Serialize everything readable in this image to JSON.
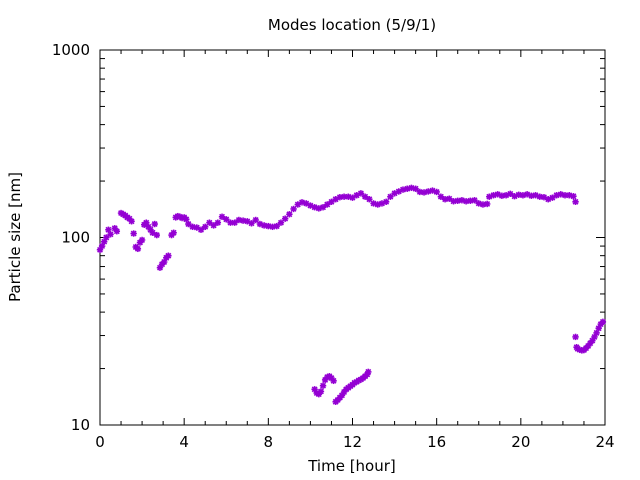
{
  "chart_data": {
    "type": "scatter",
    "title": "Modes location (5/9/1)",
    "xlabel": "Time [hour]",
    "ylabel": "Particle size [nm]",
    "xlim": [
      0,
      24
    ],
    "ylim": [
      10,
      1000
    ],
    "yscale": "log",
    "grid": false,
    "legend": "none",
    "x_ticks": [
      0,
      4,
      8,
      12,
      16,
      20,
      24
    ],
    "x_tick_labels": [
      "0",
      "4",
      "8",
      "12",
      "16",
      "20",
      "24"
    ],
    "y_ticks": [
      10,
      100,
      1000
    ],
    "y_tick_labels": [
      "10",
      "100",
      "1000"
    ],
    "marker_color": "#9400d3",
    "series": [
      {
        "values": [
          [
            0.0,
            86
          ],
          [
            0.1,
            90
          ],
          [
            0.2,
            95
          ],
          [
            0.3,
            100
          ],
          [
            0.4,
            110
          ],
          [
            0.5,
            104
          ],
          [
            0.7,
            112
          ],
          [
            0.8,
            108
          ],
          [
            1.0,
            135
          ],
          [
            1.1,
            133
          ],
          [
            1.2,
            131
          ],
          [
            1.3,
            128
          ],
          [
            1.4,
            126
          ],
          [
            1.5,
            122
          ],
          [
            1.6,
            105
          ],
          [
            1.7,
            89
          ],
          [
            1.8,
            87
          ],
          [
            1.9,
            94
          ],
          [
            2.0,
            97
          ],
          [
            2.1,
            117
          ],
          [
            2.2,
            120
          ],
          [
            2.3,
            114
          ],
          [
            2.4,
            110
          ],
          [
            2.5,
            106
          ],
          [
            2.6,
            118
          ],
          [
            2.7,
            103
          ],
          [
            2.85,
            69
          ],
          [
            2.95,
            72
          ],
          [
            3.05,
            74
          ],
          [
            3.15,
            78
          ],
          [
            3.25,
            80
          ],
          [
            3.4,
            103
          ],
          [
            3.5,
            106
          ],
          [
            3.6,
            128
          ],
          [
            3.7,
            130
          ],
          [
            3.8,
            129
          ],
          [
            3.9,
            127
          ],
          [
            4.0,
            128
          ],
          [
            4.1,
            125
          ],
          [
            4.2,
            118
          ],
          [
            4.4,
            114
          ],
          [
            4.6,
            113
          ],
          [
            4.8,
            110
          ],
          [
            5.0,
            114
          ],
          [
            5.2,
            120
          ],
          [
            5.4,
            116
          ],
          [
            5.6,
            120
          ],
          [
            5.8,
            129
          ],
          [
            6.0,
            125
          ],
          [
            6.2,
            120
          ],
          [
            6.4,
            120
          ],
          [
            6.6,
            124
          ],
          [
            6.8,
            123
          ],
          [
            7.0,
            122
          ],
          [
            7.2,
            119
          ],
          [
            7.4,
            124
          ],
          [
            7.6,
            118
          ],
          [
            7.8,
            116
          ],
          [
            8.0,
            115
          ],
          [
            8.2,
            114
          ],
          [
            8.4,
            115
          ],
          [
            8.6,
            120
          ],
          [
            8.8,
            126
          ],
          [
            9.0,
            133
          ],
          [
            9.2,
            142
          ],
          [
            9.4,
            150
          ],
          [
            9.6,
            154
          ],
          [
            9.8,
            152
          ],
          [
            10.0,
            148
          ],
          [
            10.2,
            145
          ],
          [
            10.4,
            143
          ],
          [
            10.6,
            145
          ],
          [
            10.8,
            150
          ],
          [
            11.0,
            155
          ],
          [
            11.2,
            160
          ],
          [
            11.4,
            164
          ],
          [
            11.6,
            165
          ],
          [
            11.8,
            165
          ],
          [
            12.0,
            163
          ],
          [
            12.2,
            168
          ],
          [
            12.4,
            172
          ],
          [
            12.6,
            165
          ],
          [
            12.8,
            160
          ],
          [
            13.0,
            152
          ],
          [
            13.2,
            150
          ],
          [
            13.4,
            152
          ],
          [
            13.6,
            155
          ],
          [
            13.8,
            165
          ],
          [
            14.0,
            172
          ],
          [
            14.2,
            176
          ],
          [
            14.4,
            180
          ],
          [
            14.6,
            182
          ],
          [
            14.8,
            184
          ],
          [
            15.0,
            182
          ],
          [
            15.2,
            175
          ],
          [
            15.4,
            174
          ],
          [
            15.6,
            176
          ],
          [
            15.8,
            178
          ],
          [
            16.0,
            175
          ],
          [
            16.2,
            165
          ],
          [
            16.4,
            160
          ],
          [
            16.6,
            161
          ],
          [
            16.8,
            156
          ],
          [
            17.0,
            157
          ],
          [
            17.2,
            158
          ],
          [
            17.4,
            156
          ],
          [
            17.6,
            157
          ],
          [
            17.8,
            158
          ],
          [
            18.0,
            152
          ],
          [
            18.2,
            150
          ],
          [
            18.4,
            151
          ],
          [
            18.5,
            165
          ],
          [
            18.7,
            168
          ],
          [
            18.9,
            170
          ],
          [
            19.1,
            167
          ],
          [
            19.3,
            168
          ],
          [
            19.5,
            171
          ],
          [
            19.7,
            166
          ],
          [
            19.9,
            169
          ],
          [
            20.1,
            168
          ],
          [
            20.3,
            170
          ],
          [
            20.5,
            167
          ],
          [
            20.7,
            168
          ],
          [
            20.9,
            165
          ],
          [
            21.1,
            164
          ],
          [
            21.3,
            160
          ],
          [
            21.5,
            163
          ],
          [
            21.7,
            168
          ],
          [
            21.9,
            170
          ],
          [
            22.1,
            168
          ],
          [
            22.3,
            168
          ],
          [
            22.5,
            166
          ],
          [
            22.6,
            155
          ],
          [
            10.2,
            15.5
          ],
          [
            10.3,
            14.8
          ],
          [
            10.4,
            14.6
          ],
          [
            10.5,
            15.1
          ],
          [
            10.6,
            16.2
          ],
          [
            10.7,
            17.4
          ],
          [
            10.8,
            18.0
          ],
          [
            10.9,
            18.2
          ],
          [
            11.0,
            17.8
          ],
          [
            11.1,
            17.2
          ],
          [
            11.2,
            13.3
          ],
          [
            11.3,
            13.6
          ],
          [
            11.4,
            14.0
          ],
          [
            11.5,
            14.4
          ],
          [
            11.6,
            15.0
          ],
          [
            11.7,
            15.5
          ],
          [
            11.8,
            15.8
          ],
          [
            11.9,
            16.1
          ],
          [
            12.0,
            16.4
          ],
          [
            12.1,
            16.8
          ],
          [
            12.2,
            17.0
          ],
          [
            12.3,
            17.3
          ],
          [
            12.4,
            17.5
          ],
          [
            12.5,
            17.8
          ],
          [
            12.6,
            18.2
          ],
          [
            12.7,
            18.6
          ],
          [
            12.75,
            19.2
          ],
          [
            22.6,
            29.5
          ],
          [
            22.65,
            26.0
          ],
          [
            22.7,
            25.5
          ],
          [
            22.8,
            25.2
          ],
          [
            22.9,
            25.0
          ],
          [
            23.0,
            25.1
          ],
          [
            23.1,
            25.7
          ],
          [
            23.2,
            26.4
          ],
          [
            23.3,
            27.3
          ],
          [
            23.4,
            28.2
          ],
          [
            23.5,
            29.5
          ],
          [
            23.6,
            31.0
          ],
          [
            23.7,
            32.8
          ],
          [
            23.8,
            34.5
          ],
          [
            23.9,
            35.5
          ]
        ]
      }
    ]
  }
}
